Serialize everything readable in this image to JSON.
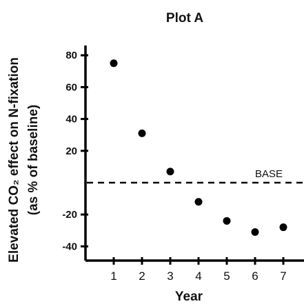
{
  "chart_data": {
    "type": "scatter",
    "title": "Plot A",
    "xlabel": "Year",
    "ylabel_line1": "Elevated CO₂ effect on N-fixation",
    "ylabel_line2": "(as % of baseline)",
    "x": [
      1,
      2,
      3,
      4,
      5,
      6,
      7
    ],
    "y": [
      75,
      31,
      7,
      -12,
      -24,
      -31,
      -28
    ],
    "xticks": [
      "1",
      "2",
      "3",
      "4",
      "5",
      "6",
      "7"
    ],
    "yticks": [
      80,
      60,
      40,
      20,
      -20,
      -40
    ],
    "ytick_labels": [
      "80",
      "60",
      "40",
      "20",
      "-20",
      "-40"
    ],
    "xlim": [
      0,
      7.2
    ],
    "ylim": [
      -50,
      87
    ],
    "reference_line": {
      "y": 0,
      "style": "dashed",
      "label": "BASE"
    },
    "grid": false,
    "point_color": "#000000"
  }
}
